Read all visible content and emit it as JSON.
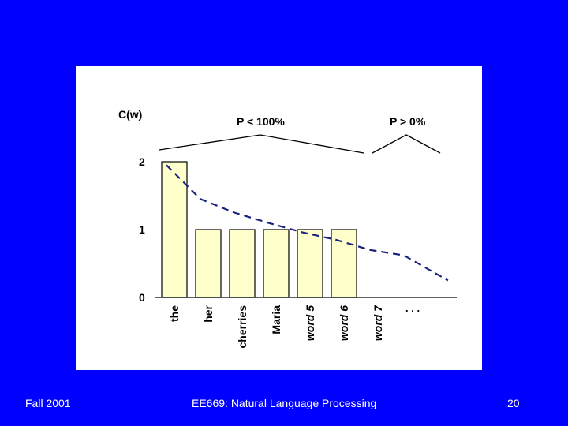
{
  "slide": {
    "background": "#0000ff",
    "footer": {
      "left": "Fall 2001",
      "center": "EE669: Natural Language Processing",
      "right": "20"
    }
  },
  "chart_data": {
    "type": "bar",
    "ylabel": "C(w)",
    "ylim": [
      0,
      2
    ],
    "yticks": [
      "0",
      "1",
      "2"
    ],
    "categories": [
      "the",
      "her",
      "cherries",
      "Maria",
      "word 5",
      "word 6",
      "word 7",
      ". . ."
    ],
    "values": [
      2,
      1,
      1,
      1,
      1,
      1,
      0,
      0
    ],
    "italic_categories": [
      "word 5",
      "word 6",
      "word 7"
    ],
    "bar_fill": "#ffffcc",
    "bar_stroke": "#000000",
    "smoothed_curve": {
      "style": "dashed",
      "color": "#1a237e",
      "x": [
        0,
        1,
        2,
        3,
        4,
        5,
        6,
        7,
        8.3
      ],
      "y": [
        1.95,
        1.45,
        1.25,
        1.1,
        0.96,
        0.85,
        0.7,
        0.62,
        0.25
      ]
    },
    "annotations": [
      {
        "text": "P < 100%",
        "over": "seen words"
      },
      {
        "text": "P > 0%",
        "over": "unseen words"
      }
    ]
  }
}
